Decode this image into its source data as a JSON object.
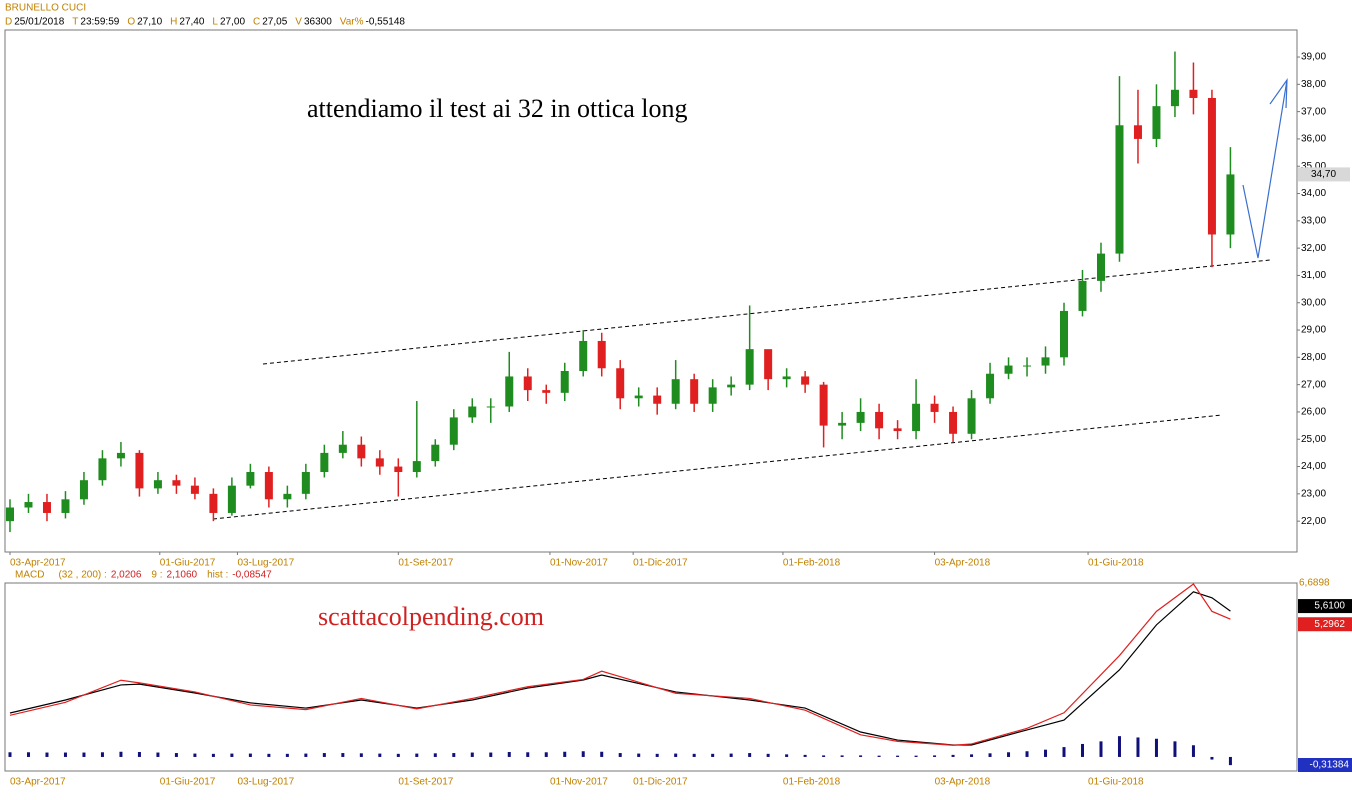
{
  "header": {
    "title": "BRUNELLO CUCI",
    "fields": [
      {
        "key": "D",
        "value": "25/01/2018"
      },
      {
        "key": "T",
        "value": "23:59:59"
      },
      {
        "key": "O",
        "value": "27,10"
      },
      {
        "key": "H",
        "value": "27,40"
      },
      {
        "key": "L",
        "value": "27,00"
      },
      {
        "key": "C",
        "value": "27,05"
      },
      {
        "key": "V",
        "value": "36300"
      },
      {
        "key": "Var%",
        "value": "-0,55148"
      }
    ]
  },
  "chart_data": [
    {
      "type": "candlestick",
      "annotation": "attendiamo il test ai 32 in ottica long",
      "last_label": "34,70",
      "x": [
        0,
        1,
        2,
        3,
        4,
        5,
        6,
        7,
        8,
        9,
        10,
        11,
        12,
        13,
        14,
        15,
        16,
        17,
        18,
        19,
        20,
        21,
        22,
        23,
        24,
        25,
        26,
        27,
        28,
        29,
        30,
        31,
        32,
        33,
        34,
        35,
        36,
        37,
        38,
        39,
        40,
        41,
        42,
        43,
        44,
        45,
        46,
        47,
        48,
        49,
        50,
        51,
        52,
        53,
        54,
        55,
        56,
        57,
        58,
        59,
        60,
        61,
        62,
        63,
        64,
        65,
        66
      ],
      "open": [
        22.0,
        22.5,
        22.7,
        22.3,
        22.8,
        23.5,
        24.3,
        24.5,
        23.2,
        23.5,
        23.3,
        23.0,
        22.3,
        23.3,
        23.8,
        22.8,
        23.0,
        23.8,
        24.5,
        24.8,
        24.3,
        24.0,
        23.8,
        24.2,
        24.8,
        25.8,
        26.2,
        26.2,
        27.3,
        26.8,
        26.7,
        27.5,
        28.6,
        27.6,
        26.5,
        26.6,
        26.3,
        27.2,
        26.3,
        26.9,
        27.0,
        28.3,
        27.2,
        27.3,
        27.0,
        25.5,
        25.6,
        26.0,
        25.4,
        25.3,
        26.3,
        26.0,
        25.2,
        26.5,
        27.4,
        27.7,
        27.7,
        28.0,
        29.7,
        30.8,
        31.8,
        36.5,
        36.0,
        37.2,
        37.8,
        37.5,
        32.5
      ],
      "high": [
        22.8,
        23.0,
        23.0,
        23.1,
        23.8,
        24.6,
        24.9,
        24.6,
        23.8,
        23.7,
        23.6,
        23.2,
        23.6,
        24.1,
        24.0,
        23.3,
        24.1,
        24.8,
        25.3,
        25.1,
        24.6,
        24.3,
        26.4,
        25.0,
        26.1,
        26.5,
        26.5,
        28.2,
        27.6,
        27.0,
        27.8,
        29.0,
        28.9,
        27.9,
        26.9,
        26.9,
        27.9,
        27.4,
        27.2,
        27.3,
        29.9,
        28.2,
        27.6,
        27.5,
        27.1,
        26.0,
        26.5,
        26.3,
        25.7,
        27.2,
        26.6,
        26.2,
        26.8,
        27.8,
        28.0,
        28.0,
        28.4,
        30.0,
        31.2,
        32.2,
        38.3,
        37.8,
        38.0,
        39.2,
        38.8,
        37.8,
        35.7
      ],
      "low": [
        21.6,
        22.3,
        22.0,
        22.1,
        22.6,
        23.3,
        24.0,
        22.9,
        23.0,
        23.0,
        22.8,
        22.0,
        22.2,
        23.2,
        22.5,
        22.5,
        22.8,
        23.6,
        24.3,
        24.0,
        23.7,
        22.9,
        23.6,
        24.0,
        24.6,
        25.6,
        25.6,
        26.0,
        26.4,
        26.3,
        26.4,
        27.3,
        27.3,
        26.1,
        26.2,
        25.9,
        26.1,
        26.0,
        26.0,
        26.6,
        26.8,
        26.8,
        26.9,
        26.7,
        24.7,
        25.0,
        25.3,
        25.0,
        25.0,
        25.0,
        25.6,
        24.9,
        25.0,
        26.3,
        27.2,
        27.3,
        27.4,
        27.7,
        29.5,
        30.4,
        31.5,
        35.1,
        35.7,
        36.8,
        36.9,
        31.3,
        32.0
      ],
      "close": [
        22.5,
        22.7,
        22.3,
        22.8,
        23.5,
        24.3,
        24.5,
        23.2,
        23.5,
        23.3,
        23.0,
        22.3,
        23.3,
        23.8,
        22.8,
        23.0,
        23.8,
        24.5,
        24.8,
        24.3,
        24.0,
        23.8,
        24.2,
        24.8,
        25.8,
        26.2,
        26.2,
        27.3,
        26.8,
        26.7,
        27.5,
        28.6,
        27.6,
        26.5,
        26.6,
        26.3,
        27.2,
        26.3,
        26.9,
        27.0,
        28.3,
        27.2,
        27.3,
        27.0,
        25.5,
        25.6,
        26.0,
        25.4,
        25.3,
        26.3,
        26.0,
        25.2,
        26.5,
        27.4,
        27.7,
        27.7,
        28.0,
        29.7,
        30.8,
        31.8,
        36.5,
        36.0,
        37.2,
        37.8,
        37.5,
        32.5,
        34.7
      ],
      "colors": {
        "up": "#1f8c1f",
        "down": "#e02020"
      },
      "xlim": [
        -0.27,
        69.6
      ],
      "xticks": [
        {
          "value": 0,
          "label": "03-Apr-2017"
        },
        {
          "value": 8.1,
          "label": "01-Giu-2017"
        },
        {
          "value": 12.3,
          "label": "03-Lug-2017"
        },
        {
          "value": 21.0,
          "label": "01-Set-2017"
        },
        {
          "value": 29.2,
          "label": "01-Nov-2017"
        },
        {
          "value": 33.7,
          "label": "01-Dic-2017"
        },
        {
          "value": 41.8,
          "label": "01-Feb-2018"
        },
        {
          "value": 50.0,
          "label": "03-Apr-2018"
        },
        {
          "value": 58.3,
          "label": "01-Giu-2018"
        }
      ],
      "ylim": [
        20.87,
        39.99
      ],
      "yticks": [
        {
          "value": 22,
          "label": "22,00"
        },
        {
          "value": 23,
          "label": "23,00"
        },
        {
          "value": 24,
          "label": "24,00"
        },
        {
          "value": 25,
          "label": "25,00"
        },
        {
          "value": 26,
          "label": "26,00"
        },
        {
          "value": 27,
          "label": "27,00"
        },
        {
          "value": 28,
          "label": "28,00"
        },
        {
          "value": 29,
          "label": "29,00"
        },
        {
          "value": 30,
          "label": "30,00"
        },
        {
          "value": 31,
          "label": "31,00"
        },
        {
          "value": 32,
          "label": "32,00"
        },
        {
          "value": 33,
          "label": "33,00"
        },
        {
          "value": 34,
          "label": "34,00"
        },
        {
          "value": 35,
          "label": "35,00"
        },
        {
          "value": 36,
          "label": "36,00"
        },
        {
          "value": 37,
          "label": "37,00"
        },
        {
          "value": 38,
          "label": "38,00"
        },
        {
          "value": 39,
          "label": "39,00"
        }
      ]
    },
    {
      "type": "line",
      "header": [
        {
          "key": "MACD",
          "value": ""
        },
        {
          "key": "(32 , 200) :",
          "value": "2,0206"
        },
        {
          "key": "9 :",
          "value": "2,1060"
        },
        {
          "key": "hist :",
          "value": "-0,08547"
        }
      ],
      "annotation": "scattacolpending.com",
      "top_label": "6,6898",
      "xlim": [
        -0.27,
        69.6
      ],
      "ylim": [
        -0.54,
        6.6898
      ],
      "x": [
        0,
        3,
        6,
        7,
        10,
        13,
        16,
        19,
        22,
        25,
        28,
        31,
        32,
        36,
        40,
        43,
        46,
        48,
        51,
        52,
        55,
        57,
        60,
        62,
        64,
        65,
        66
      ],
      "series": [
        {
          "name": "MACD",
          "color": "#000000",
          "values": [
            1.69,
            2.19,
            2.77,
            2.8,
            2.46,
            2.08,
            1.88,
            2.19,
            1.88,
            2.19,
            2.65,
            2.96,
            3.15,
            2.5,
            2.19,
            1.88,
            0.96,
            0.65,
            0.46,
            0.46,
            1.04,
            1.42,
            3.35,
            5.08,
            6.35,
            6.12,
            5.61
          ],
          "last_label": "5,6100"
        },
        {
          "name": "Signal",
          "color": "#e02020",
          "values": [
            1.6,
            2.1,
            2.95,
            2.85,
            2.5,
            2.0,
            1.82,
            2.25,
            1.85,
            2.25,
            2.7,
            2.98,
            3.3,
            2.45,
            2.25,
            1.8,
            0.85,
            0.6,
            0.45,
            0.5,
            1.1,
            1.7,
            3.9,
            5.6,
            6.65,
            5.6,
            5.2962
          ],
          "last_label": "5,2962"
        }
      ],
      "hist": {
        "color": "#10107a",
        "last_label": "-0,31384",
        "values": [
          0.18,
          0.18,
          0.17,
          0.17,
          0.17,
          0.18,
          0.2,
          0.19,
          0.17,
          0.15,
          0.13,
          0.12,
          0.13,
          0.13,
          0.12,
          0.12,
          0.13,
          0.15,
          0.15,
          0.14,
          0.13,
          0.12,
          0.13,
          0.14,
          0.15,
          0.17,
          0.17,
          0.19,
          0.18,
          0.18,
          0.2,
          0.22,
          0.2,
          0.15,
          0.13,
          0.12,
          0.13,
          0.12,
          0.12,
          0.13,
          0.15,
          0.12,
          0.1,
          0.08,
          0.06,
          0.06,
          0.06,
          0.05,
          0.05,
          0.05,
          0.06,
          0.08,
          0.1,
          0.14,
          0.18,
          0.22,
          0.28,
          0.38,
          0.5,
          0.6,
          0.8,
          0.75,
          0.7,
          0.6,
          0.45,
          -0.1,
          -0.31384
        ]
      }
    }
  ]
}
